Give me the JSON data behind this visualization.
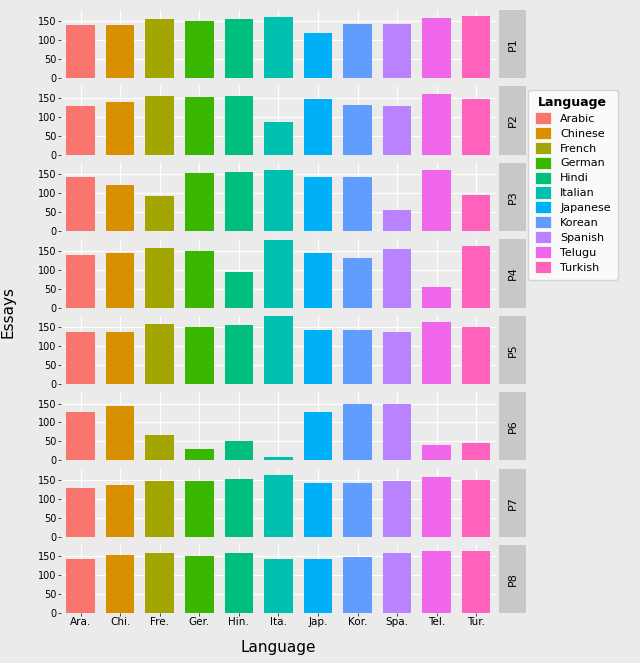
{
  "languages": [
    "Ara.",
    "Chi.",
    "Fre.",
    "Ger.",
    "Hin.",
    "Ita.",
    "Jap.",
    "Kor.",
    "Spa.",
    "Tel.",
    "Tur."
  ],
  "lang_full": [
    "Arabic",
    "Chinese",
    "French",
    "German",
    "Hindi",
    "Italian",
    "Japanese",
    "Korean",
    "Spanish",
    "Telugu",
    "Turkish"
  ],
  "panels": [
    "P1",
    "P2",
    "P3",
    "P4",
    "P5",
    "P6",
    "P7",
    "P8"
  ],
  "colors": [
    "#F8766D",
    "#D89000",
    "#A3A500",
    "#39B600",
    "#00BF7D",
    "#00BFC4",
    "#00B0F6",
    "#9590FF",
    "#E76BF3",
    "#FF62BC",
    "#FF62BC"
  ],
  "colors_fixed": [
    "#FC8D62",
    "#D89000",
    "#A3A500",
    "#39B600",
    "#00BF7D",
    "#00C0AF",
    "#00B0F6",
    "#619CFF",
    "#B983FF",
    "#F066EA",
    "#FF62BC"
  ],
  "data": {
    "P1": [
      140,
      140,
      155,
      152,
      155,
      162,
      118,
      142,
      143,
      160,
      163
    ],
    "P2": [
      128,
      138,
      155,
      152,
      155,
      87,
      148,
      130,
      128,
      160,
      148
    ],
    "P3": [
      143,
      122,
      93,
      152,
      155,
      160,
      143,
      143,
      55,
      160,
      95
    ],
    "P4": [
      138,
      145,
      157,
      150,
      93,
      178,
      143,
      130,
      155,
      55,
      163
    ],
    "P5": [
      137,
      137,
      157,
      150,
      155,
      178,
      143,
      143,
      137,
      163,
      150
    ],
    "P6": [
      128,
      143,
      67,
      30,
      52,
      10,
      128,
      148,
      150,
      40,
      45
    ],
    "P7": [
      130,
      137,
      148,
      148,
      153,
      163,
      143,
      143,
      148,
      157,
      150
    ],
    "P8": [
      143,
      155,
      160,
      150,
      160,
      143,
      143,
      148,
      160,
      163,
      163
    ]
  },
  "ylabel": "Essays",
  "xlabel": "Language",
  "bg_color": "#EBEBEB",
  "panel_strip_color": "#C8C8C8",
  "grid_color": "#FFFFFF",
  "ylim": [
    0,
    180
  ],
  "yticks": [
    0,
    50,
    100,
    150
  ]
}
